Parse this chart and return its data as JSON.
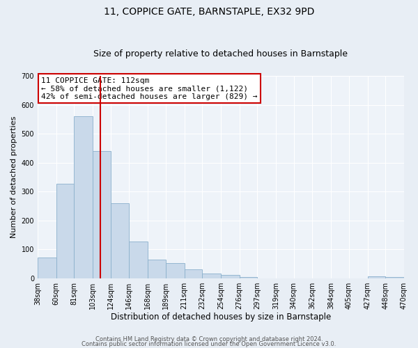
{
  "title": "11, COPPICE GATE, BARNSTAPLE, EX32 9PD",
  "subtitle": "Size of property relative to detached houses in Barnstaple",
  "xlabel": "Distribution of detached houses by size in Barnstaple",
  "ylabel": "Number of detached properties",
  "bar_vals": [
    72,
    328,
    560,
    440,
    260,
    128,
    65,
    53,
    30,
    17,
    11,
    5,
    0,
    0,
    0,
    0,
    0,
    0,
    7,
    5
  ],
  "bar_labels": [
    "38sqm",
    "60sqm",
    "81sqm",
    "103sqm",
    "124sqm",
    "146sqm",
    "168sqm",
    "189sqm",
    "211sqm",
    "232sqm",
    "254sqm",
    "276sqm",
    "297sqm",
    "319sqm",
    "340sqm",
    "362sqm",
    "384sqm",
    "405sqm",
    "427sqm",
    "448sqm",
    "470sqm"
  ],
  "bar_color": "#c9d9ea",
  "bar_edge_color": "#8ab0cc",
  "vline_x": 112,
  "vline_color": "#cc0000",
  "x_bin_edges": [
    38,
    60,
    81,
    103,
    124,
    146,
    168,
    189,
    211,
    232,
    254,
    276,
    297,
    319,
    340,
    362,
    384,
    405,
    427,
    448,
    470
  ],
  "ylim": [
    0,
    700
  ],
  "yticks": [
    0,
    100,
    200,
    300,
    400,
    500,
    600,
    700
  ],
  "annotation_text": "11 COPPICE GATE: 112sqm\n← 58% of detached houses are smaller (1,122)\n42% of semi-detached houses are larger (829) →",
  "annotation_box_color": "#ffffff",
  "annotation_box_edge": "#cc0000",
  "footer_line1": "Contains HM Land Registry data © Crown copyright and database right 2024.",
  "footer_line2": "Contains public sector information licensed under the Open Government Licence v3.0.",
  "bg_color": "#e8eef5",
  "plot_bg_color": "#eef3f9",
  "grid_color": "#ffffff",
  "title_fontsize": 10,
  "subtitle_fontsize": 9,
  "ylabel_fontsize": 8,
  "xlabel_fontsize": 8.5,
  "tick_fontsize": 7,
  "annotation_fontsize": 8,
  "footer_fontsize": 6
}
